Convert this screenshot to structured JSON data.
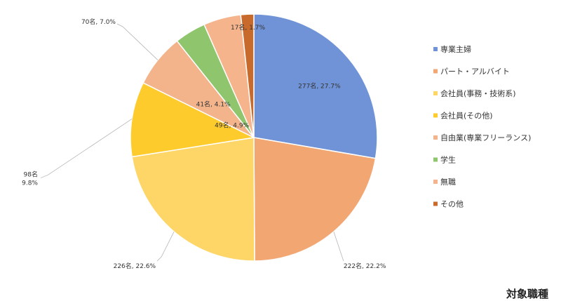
{
  "chart_data": {
    "type": "pie",
    "caption": "対象職種",
    "legend_position": "right",
    "slices": [
      {
        "name": "専業主婦",
        "count": 277,
        "percent": 27.7,
        "label": "277名, 27.7%",
        "color": "#6f93d6"
      },
      {
        "name": "パート・アルバイト",
        "count": 222,
        "percent": 22.2,
        "label": "222名, 22.2%",
        "color": "#f2a773"
      },
      {
        "name": "会社員(事務・技術系)",
        "count": 226,
        "percent": 22.6,
        "label": "226名, 22.6%",
        "color": "#fdd667"
      },
      {
        "name": "会社員(その他)",
        "count": 98,
        "percent": 9.8,
        "label": "98名\n9.8%",
        "color": "#fecb2d"
      },
      {
        "name": "自由業(専業フリーランス)",
        "count": 70,
        "percent": 7.0,
        "label": "70名, 7.0%",
        "color": "#f3b48c"
      },
      {
        "name": "学生",
        "count": 41,
        "percent": 4.1,
        "label": "41名, 4.1%",
        "color": "#8fc56d"
      },
      {
        "name": "無職",
        "count": 49,
        "percent": 4.9,
        "label": "49名, 4.9%",
        "color": "#f5b48c"
      },
      {
        "name": "その他",
        "count": 17,
        "percent": 1.7,
        "label": "17名, 1.7%",
        "color": "#c86a2c"
      }
    ]
  }
}
